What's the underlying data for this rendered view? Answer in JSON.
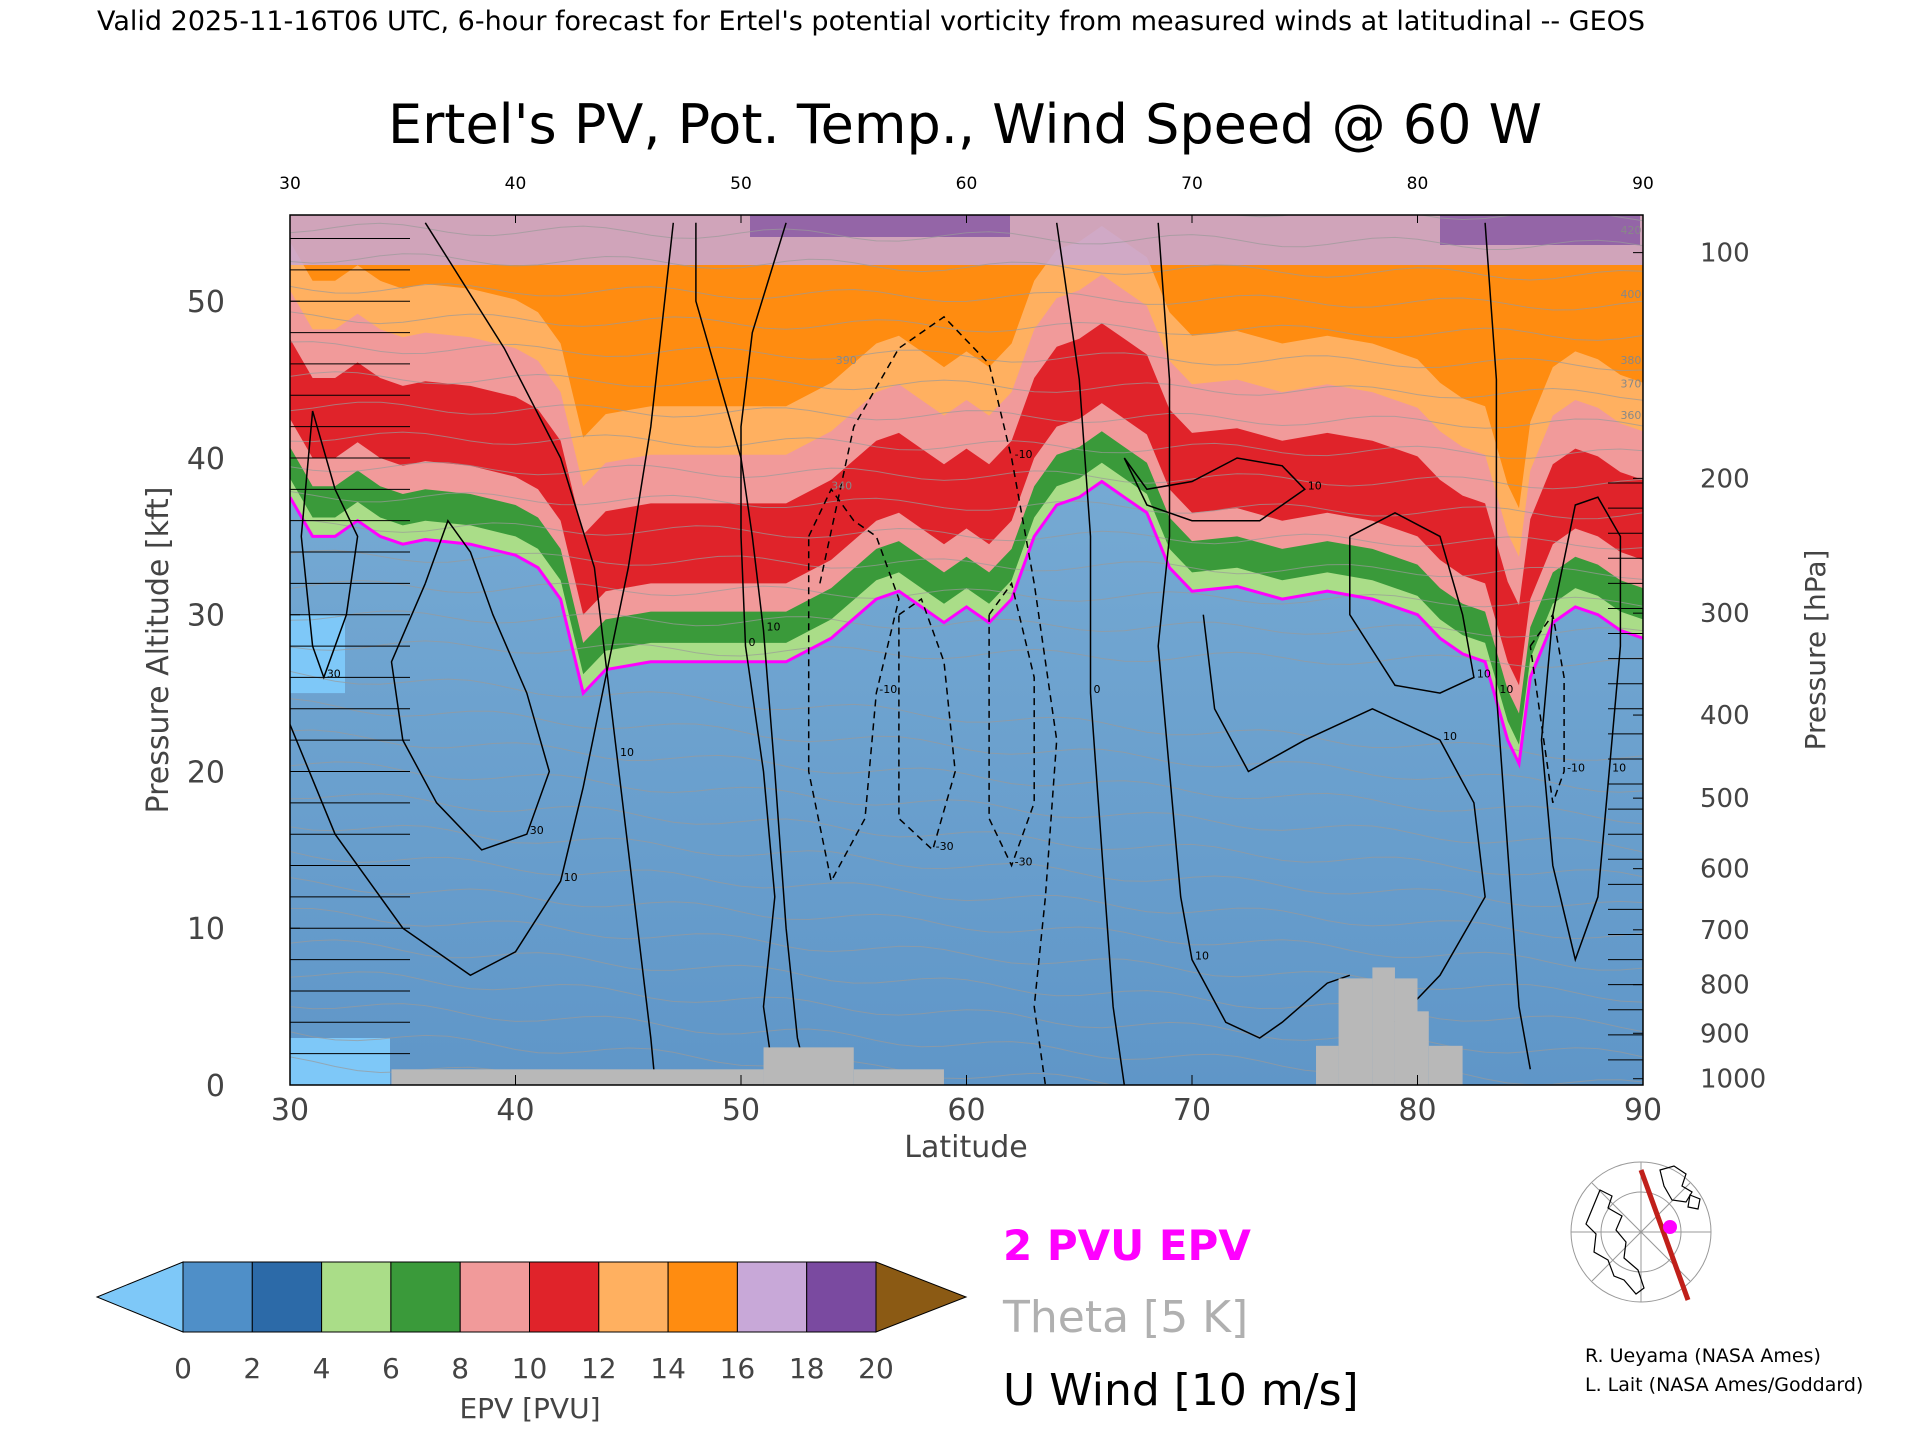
{
  "header_text": "Valid 2025-11-16T06 UTC, 6-hour forecast for Ertel's potential vorticity from measured winds at latitudinal -- GEOS",
  "chart_data": {
    "type": "heatmap",
    "title": "Ertel's PV, Pot. Temp., Wind Speed @ 60 W",
    "xlabel": "Latitude",
    "ylabel": "Pressure Altitude [kft]",
    "y2label": "Pressure [hPa]",
    "xlim": [
      30,
      90
    ],
    "ylim": [
      0,
      55.5
    ],
    "x_ticks": [
      30,
      40,
      50,
      60,
      70,
      80,
      90
    ],
    "y_ticks": [
      0,
      10,
      20,
      30,
      40,
      50
    ],
    "pressure_ticks": [
      {
        "hPa": 100,
        "kft": 53.1
      },
      {
        "hPa": 200,
        "kft": 38.7
      },
      {
        "hPa": 300,
        "kft": 30.1
      },
      {
        "hPa": 400,
        "kft": 23.6
      },
      {
        "hPa": 500,
        "kft": 18.3
      },
      {
        "hPa": 600,
        "kft": 13.8
      },
      {
        "hPa": 700,
        "kft": 9.9
      },
      {
        "hPa": 800,
        "kft": 6.4
      },
      {
        "hPa": 900,
        "kft": 3.3
      },
      {
        "hPa": 1000,
        "kft": 0.4
      }
    ],
    "pv_2pvu_boundary": [
      [
        30,
        37.5
      ],
      [
        31,
        35.0
      ],
      [
        32,
        35.0
      ],
      [
        33,
        36.0
      ],
      [
        34,
        35.0
      ],
      [
        35,
        34.5
      ],
      [
        36,
        34.8
      ],
      [
        38,
        34.5
      ],
      [
        40,
        33.8
      ],
      [
        41,
        33.0
      ],
      [
        42,
        31.0
      ],
      [
        42.5,
        28.0
      ],
      [
        43,
        25.0
      ],
      [
        44,
        26.5
      ],
      [
        46,
        27.0
      ],
      [
        48,
        27.0
      ],
      [
        50,
        27.0
      ],
      [
        52,
        27.0
      ],
      [
        54,
        28.5
      ],
      [
        56,
        31.0
      ],
      [
        57,
        31.5
      ],
      [
        58,
        30.5
      ],
      [
        59,
        29.5
      ],
      [
        60,
        30.5
      ],
      [
        61,
        29.5
      ],
      [
        62,
        31.0
      ],
      [
        63,
        35.0
      ],
      [
        64,
        37.0
      ],
      [
        65,
        37.5
      ],
      [
        66,
        38.5
      ],
      [
        67,
        37.5
      ],
      [
        68,
        36.5
      ],
      [
        69,
        33.0
      ],
      [
        70,
        31.5
      ],
      [
        72,
        31.8
      ],
      [
        74,
        31.0
      ],
      [
        76,
        31.5
      ],
      [
        78,
        31.0
      ],
      [
        80,
        30.0
      ],
      [
        81,
        28.5
      ],
      [
        82,
        27.5
      ],
      [
        83,
        27.0
      ],
      [
        84,
        22.0
      ],
      [
        84.5,
        20.5
      ],
      [
        85,
        26.0
      ],
      [
        86,
        29.5
      ],
      [
        87,
        30.5
      ],
      [
        88,
        30.0
      ],
      [
        89,
        29.0
      ],
      [
        90,
        28.5
      ]
    ],
    "surface_blocks": [
      {
        "x": [
          34.5,
          51
        ],
        "top_kft": 1.0
      },
      {
        "x": [
          51,
          55
        ],
        "top_kft": 2.4
      },
      {
        "x": [
          55,
          59
        ],
        "top_kft": 1.0
      },
      {
        "x": [
          75.5,
          76.5
        ],
        "top_kft": 2.5
      },
      {
        "x": [
          76.5,
          78
        ],
        "top_kft": 6.8
      },
      {
        "x": [
          78,
          79
        ],
        "top_kft": 7.5
      },
      {
        "x": [
          79,
          80
        ],
        "top_kft": 6.8
      },
      {
        "x": [
          80,
          80.5
        ],
        "top_kft": 4.7
      },
      {
        "x": [
          80.5,
          82
        ],
        "top_kft": 2.5
      }
    ],
    "u_wind_contours": [
      {
        "label": "30",
        "style": "solid",
        "points": [
          [
            31,
            43
          ],
          [
            32,
            38
          ],
          [
            33,
            35
          ],
          [
            32.5,
            30
          ],
          [
            31.5,
            26
          ],
          [
            31,
            28
          ],
          [
            30.5,
            35
          ],
          [
            31,
            43
          ]
        ]
      },
      {
        "label": "30",
        "style": "solid",
        "points": [
          [
            36,
            32
          ],
          [
            37,
            36
          ],
          [
            38,
            34
          ],
          [
            39,
            30
          ],
          [
            40.5,
            25
          ],
          [
            41.5,
            20
          ],
          [
            40.5,
            16
          ],
          [
            38.5,
            15
          ],
          [
            36.5,
            18
          ],
          [
            35,
            22
          ],
          [
            34.5,
            27
          ],
          [
            36,
            32
          ]
        ]
      },
      {
        "label": "10",
        "style": "solid",
        "points": [
          [
            30,
            23
          ],
          [
            32,
            16
          ],
          [
            35,
            10
          ],
          [
            38,
            7
          ],
          [
            40,
            8.5
          ],
          [
            42,
            13
          ],
          [
            43,
            19
          ],
          [
            44,
            26
          ],
          [
            45,
            33
          ],
          [
            46,
            42
          ],
          [
            47,
            55
          ]
        ]
      },
      {
        "label": "10",
        "style": "solid",
        "points": [
          [
            36,
            55
          ],
          [
            39.5,
            47
          ],
          [
            42,
            40
          ],
          [
            43.5,
            33
          ],
          [
            44,
            27
          ],
          [
            44.5,
            21
          ],
          [
            45,
            15
          ],
          [
            45.5,
            9
          ],
          [
            46,
            3
          ],
          [
            46.2,
            0
          ]
        ]
      },
      {
        "label": "10",
        "style": "solid",
        "points": [
          [
            48,
            55
          ],
          [
            48,
            50
          ],
          [
            49,
            45
          ],
          [
            50,
            40
          ],
          [
            50.5,
            35
          ],
          [
            51,
            29
          ],
          [
            51.5,
            20
          ],
          [
            52,
            10
          ],
          [
            52.5,
            3
          ],
          [
            53,
            0
          ]
        ]
      },
      {
        "label": "0",
        "style": "solid",
        "points": [
          [
            52,
            55
          ],
          [
            50.5,
            48
          ],
          [
            50,
            42
          ],
          [
            50,
            35
          ],
          [
            50.2,
            28
          ],
          [
            51,
            20
          ],
          [
            51.5,
            12
          ],
          [
            51,
            5
          ],
          [
            51.5,
            0
          ]
        ]
      },
      {
        "label": "-10",
        "style": "dashed",
        "points": [
          [
            53,
            35
          ],
          [
            54,
            38
          ],
          [
            55,
            36
          ],
          [
            56,
            35
          ],
          [
            57,
            31
          ],
          [
            56,
            25
          ],
          [
            55.5,
            17
          ],
          [
            54,
            13
          ],
          [
            53,
            20
          ],
          [
            53,
            28
          ],
          [
            53,
            35
          ]
        ]
      },
      {
        "label": "-10",
        "style": "dashed",
        "points": [
          [
            53.5,
            32
          ],
          [
            55,
            42
          ],
          [
            57,
            47
          ],
          [
            59,
            49
          ],
          [
            61,
            46
          ],
          [
            62,
            40
          ],
          [
            63,
            32
          ],
          [
            64,
            22
          ],
          [
            63.5,
            12
          ],
          [
            63,
            5
          ],
          [
            63.5,
            0
          ]
        ]
      },
      {
        "label": "-30",
        "style": "dashed",
        "points": [
          [
            57,
            30
          ],
          [
            58,
            31
          ],
          [
            59,
            27
          ],
          [
            59.5,
            20
          ],
          [
            58.5,
            15
          ],
          [
            57,
            17
          ],
          [
            57,
            24
          ],
          [
            57,
            30
          ]
        ]
      },
      {
        "label": "-30",
        "style": "dashed",
        "points": [
          [
            61,
            30
          ],
          [
            62,
            32
          ],
          [
            63,
            26
          ],
          [
            63,
            18
          ],
          [
            62,
            14
          ],
          [
            61,
            17
          ],
          [
            61,
            24
          ],
          [
            61,
            30
          ]
        ]
      },
      {
        "label": "0",
        "style": "solid",
        "points": [
          [
            64,
            55
          ],
          [
            65,
            45
          ],
          [
            65.5,
            35
          ],
          [
            65.5,
            25
          ],
          [
            66,
            15
          ],
          [
            66.5,
            5
          ],
          [
            67,
            0
          ]
        ]
      },
      {
        "label": "10",
        "style": "solid",
        "points": [
          [
            68.5,
            55
          ],
          [
            69,
            45
          ],
          [
            69,
            35
          ],
          [
            68.5,
            28
          ],
          [
            69,
            20
          ],
          [
            69.5,
            12
          ],
          [
            70,
            8
          ],
          [
            71.5,
            4
          ],
          [
            73,
            3
          ],
          [
            74,
            4
          ],
          [
            76,
            6.5
          ],
          [
            77,
            7
          ]
        ]
      },
      {
        "label": "10",
        "style": "solid",
        "points": [
          [
            67,
            40
          ],
          [
            68,
            38
          ],
          [
            70,
            38.5
          ],
          [
            72,
            40
          ],
          [
            74,
            39.5
          ],
          [
            75,
            38
          ],
          [
            73,
            36
          ],
          [
            70,
            36
          ],
          [
            68,
            37
          ],
          [
            67,
            40
          ]
        ]
      },
      {
        "label": "10",
        "style": "solid",
        "points": [
          [
            70.5,
            30
          ],
          [
            71,
            24
          ],
          [
            72.5,
            20
          ],
          [
            75,
            22
          ],
          [
            78,
            24
          ],
          [
            81,
            22
          ],
          [
            82.5,
            18
          ],
          [
            83,
            12
          ],
          [
            81,
            7
          ],
          [
            79,
            4
          ]
        ]
      },
      {
        "label": "10",
        "style": "solid",
        "points": [
          [
            77,
            35
          ],
          [
            79,
            36.5
          ],
          [
            81,
            35
          ],
          [
            82,
            30
          ],
          [
            82.5,
            26
          ],
          [
            81,
            25
          ],
          [
            79,
            25.5
          ],
          [
            77,
            30
          ],
          [
            77,
            35
          ]
        ]
      },
      {
        "label": "10",
        "style": "solid",
        "points": [
          [
            83,
            55
          ],
          [
            83.5,
            45
          ],
          [
            83.5,
            35
          ],
          [
            83.5,
            25
          ],
          [
            84,
            15
          ],
          [
            84.5,
            5
          ],
          [
            85,
            1
          ]
        ]
      },
      {
        "label": "10",
        "style": "solid",
        "points": [
          [
            86,
            30
          ],
          [
            87,
            37
          ],
          [
            88,
            37.5
          ],
          [
            89,
            35
          ],
          [
            89,
            28
          ],
          [
            88.5,
            20
          ],
          [
            88,
            12
          ],
          [
            87,
            8
          ],
          [
            86,
            14
          ],
          [
            85.5,
            22
          ],
          [
            86,
            30
          ]
        ]
      },
      {
        "label": "-10",
        "style": "dashed",
        "points": [
          [
            85,
            28
          ],
          [
            86,
            30
          ],
          [
            86.5,
            26
          ],
          [
            86.5,
            20
          ],
          [
            86,
            18
          ],
          [
            85.5,
            23
          ],
          [
            85,
            28
          ]
        ]
      }
    ],
    "theta_labels": [
      {
        "x": 54.2,
        "y": 46.0,
        "text": "390"
      },
      {
        "x": 54.0,
        "y": 38.0,
        "text": "340"
      },
      {
        "x": 89.0,
        "y": 46.0,
        "text": "380"
      },
      {
        "x": 89.0,
        "y": 44.5,
        "text": "370"
      },
      {
        "x": 89.0,
        "y": 42.5,
        "text": "360"
      },
      {
        "x": 89.0,
        "y": 54.3,
        "text": "420"
      },
      {
        "x": 89.0,
        "y": 50.2,
        "text": "400"
      }
    ],
    "colorbar": {
      "label": "EPV [PVU]",
      "ticks": [
        0,
        2,
        4,
        6,
        8,
        10,
        12,
        14,
        16,
        18,
        20
      ],
      "colors": [
        "#4f8fc8",
        "#2c6aa8",
        "#aadd88",
        "#3a9a3a",
        "#f19a9a",
        "#e0232a",
        "#ffb060",
        "#ff8c10",
        "#c8a8d8",
        "#7a4aa0",
        "#f5e888"
      ],
      "under_color": "#7ec8f8",
      "over_color": "#8b5a14"
    },
    "legend": [
      {
        "text": "2 PVU EPV",
        "color": "#ff00ff"
      },
      {
        "text": "Theta [5 K]",
        "color": "#b0b0b0"
      },
      {
        "text": "U Wind [10 m/s]",
        "color": "#000000"
      }
    ]
  },
  "credits": [
    "R. Ueyama (NASA Ames)",
    "L. Lait (NASA Ames/Goddard)"
  ]
}
